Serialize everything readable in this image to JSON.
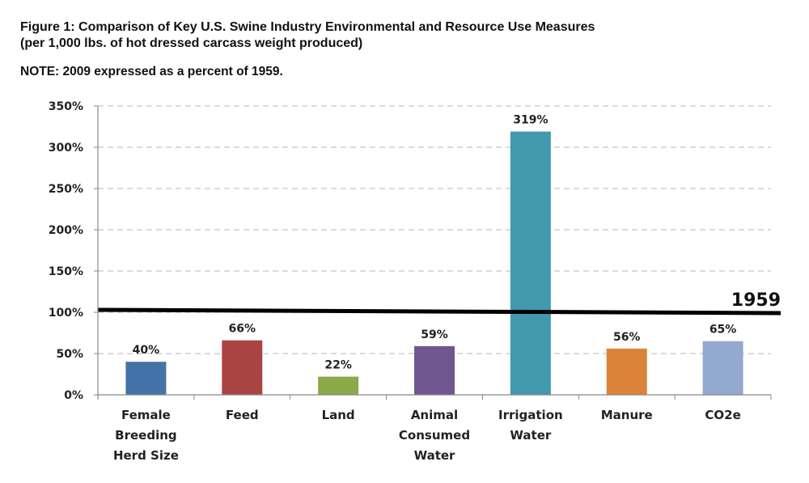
{
  "header": {
    "title_line1": "Figure 1: Comparison of Key U.S. Swine Industry Environmental and Resource Use Measures",
    "title_line2": "(per 1,000 lbs. of hot dressed carcass weight produced)",
    "note": "NOTE: 2009 expressed as a percent of 1959."
  },
  "chart_data": {
    "type": "bar",
    "title": "Figure 1: Comparison of Key U.S. Swine Industry Environmental and Resource Use Measures (per 1,000 lbs. of hot dressed carcass weight produced)",
    "subtitle": "NOTE: 2009 expressed as a percent of 1959.",
    "xlabel": "",
    "ylabel": "",
    "ylim": [
      0,
      350
    ],
    "yticks": [
      0,
      50,
      100,
      150,
      200,
      250,
      300,
      350
    ],
    "ytick_labels": [
      "0%",
      "50%",
      "100%",
      "150%",
      "200%",
      "250%",
      "300%",
      "350%"
    ],
    "grid": true,
    "legend": "none",
    "categories": [
      [
        "Female",
        "Breeding",
        "Herd Size"
      ],
      [
        "Feed"
      ],
      [
        "Land"
      ],
      [
        "Animal",
        "Consumed",
        "Water"
      ],
      [
        "Irrigation",
        "Water"
      ],
      [
        "Manure"
      ],
      [
        "CO2e"
      ]
    ],
    "category_names": [
      "Female Breeding Herd Size",
      "Feed",
      "Land",
      "Animal Consumed Water",
      "Irrigation Water",
      "Manure",
      "CO2e"
    ],
    "values": [
      40,
      66,
      22,
      59,
      319,
      56,
      65
    ],
    "data_labels": [
      "40%",
      "66%",
      "22%",
      "59%",
      "319%",
      "56%",
      "65%"
    ],
    "colors": [
      "#4472A8",
      "#A94442",
      "#8BA84B",
      "#70578F",
      "#4199AE",
      "#DB8339",
      "#94A9CF"
    ],
    "reference_line": {
      "value": 100,
      "label": "1959",
      "color": "#000000"
    }
  }
}
